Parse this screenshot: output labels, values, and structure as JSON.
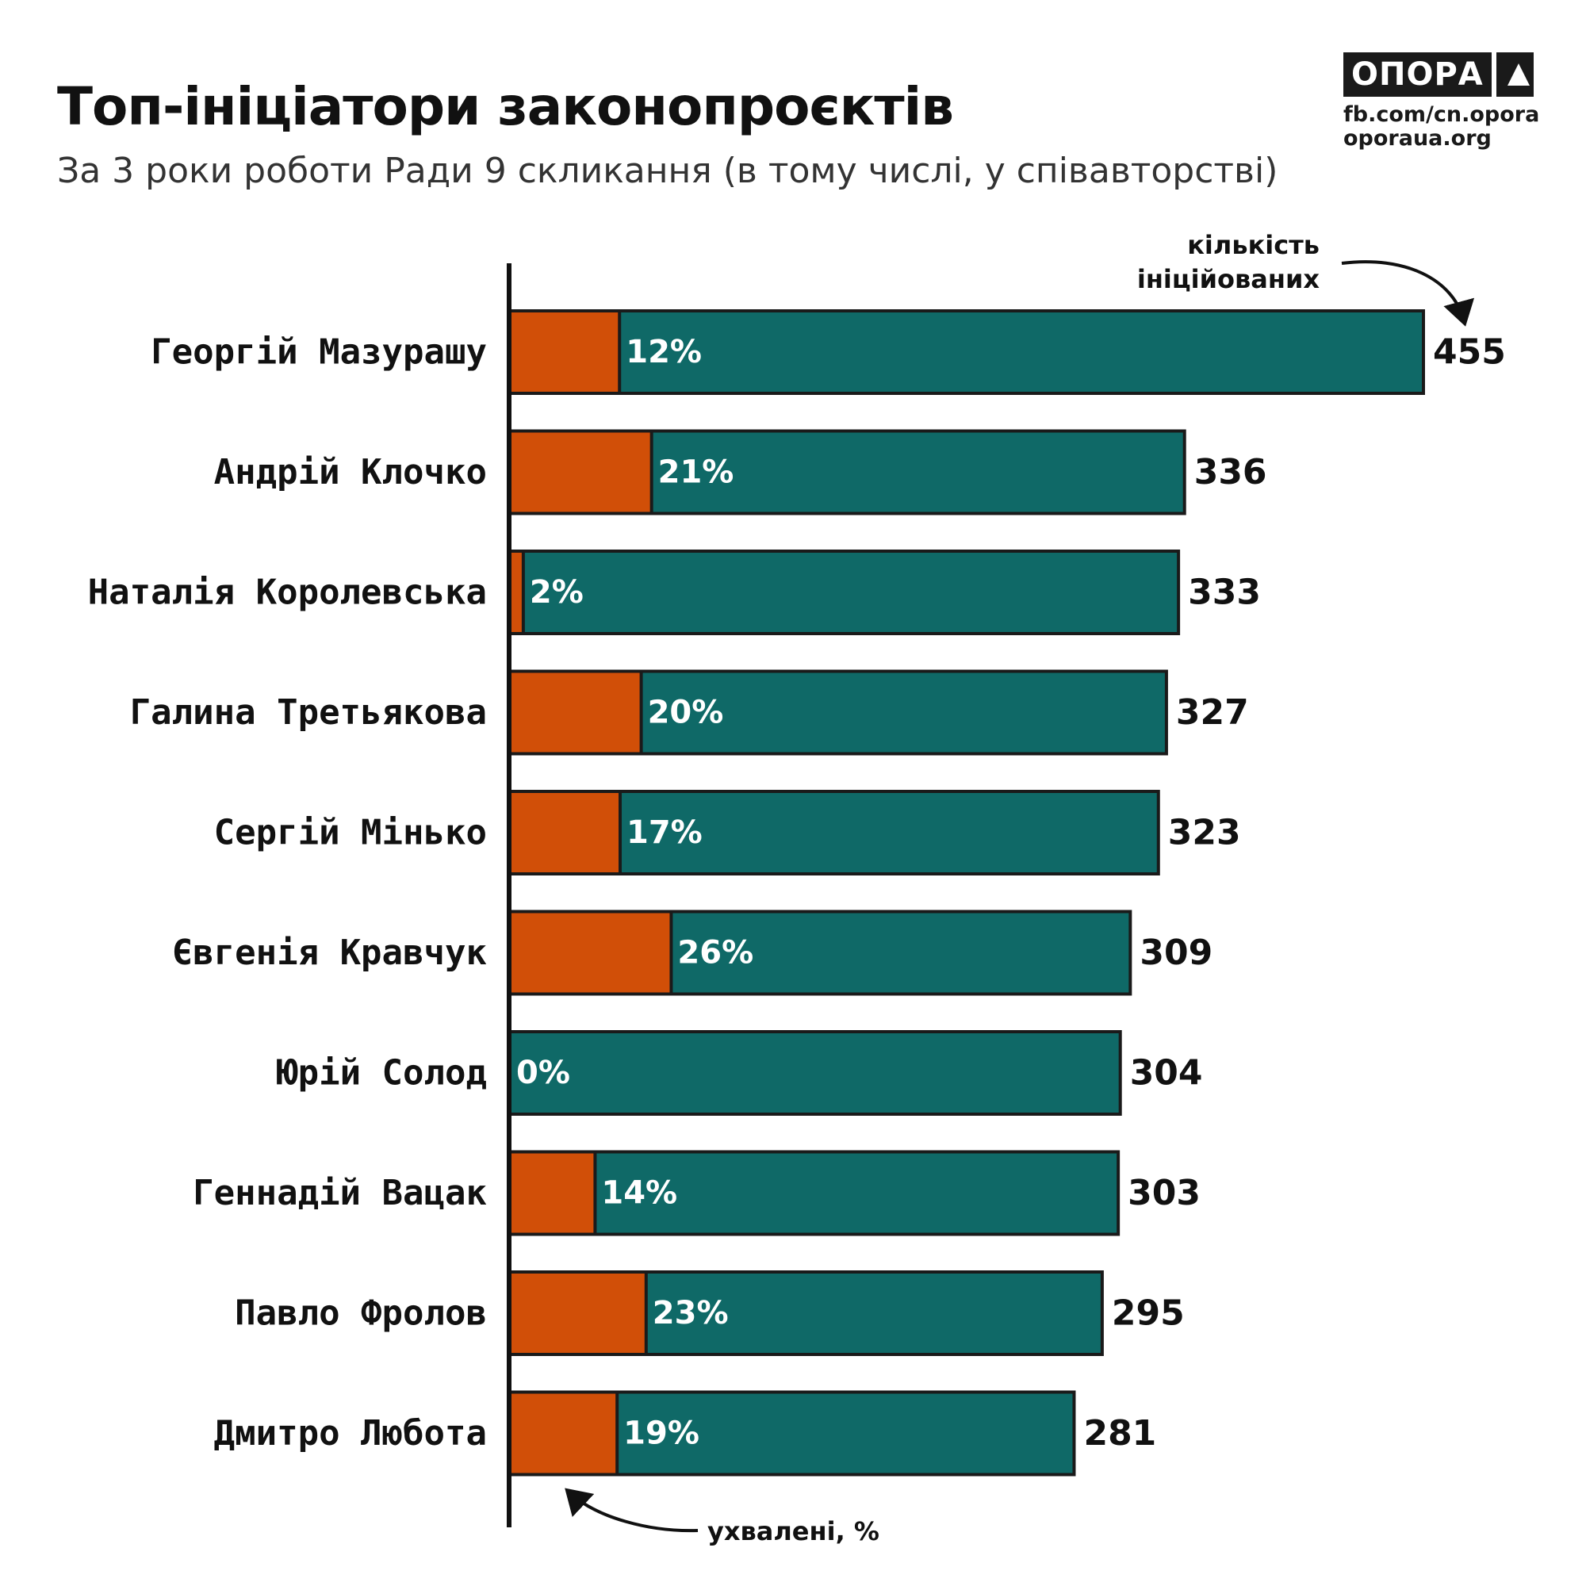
{
  "header": {
    "title": "Топ-ініціатори законопроєктів",
    "subtitle": "За 3 роки роботи Ради 9 скликання (в тому числі, у співавторстві)"
  },
  "brand": {
    "logo_text": "ОПОРА",
    "logo_icon": "triangle-icon",
    "facebook": "fb.com/cn.opora",
    "website": "oporaua.org"
  },
  "colors": {
    "total": "#0f6967",
    "approved": "#d14f08",
    "outline": "#1a1a1a"
  },
  "chart_data": {
    "type": "bar",
    "orientation": "horizontal",
    "title": "Топ-ініціатори законопроєктів",
    "subtitle": "За 3 роки роботи Ради 9 скликання (в тому числі, у співавторстві)",
    "categories": [
      "Георгій Мазурашу",
      "Андрій Клочко",
      "Наталія Королевська",
      "Галина Третьякова",
      "Сергій Мінько",
      "Євгенія Кравчук",
      "Юрій Солод",
      "Геннадій Вацак",
      "Павло Фролов",
      "Дмитро Любота"
    ],
    "series": [
      {
        "name": "кількість ініційованих",
        "values": [
          455,
          336,
          333,
          327,
          323,
          309,
          304,
          303,
          295,
          281
        ]
      },
      {
        "name": "ухвалені, %",
        "values": [
          12,
          21,
          2,
          20,
          17,
          26,
          0,
          14,
          23,
          19
        ]
      }
    ],
    "approved_labels": [
      "12%",
      "21%",
      "2%",
      "20%",
      "17%",
      "26%",
      "0%",
      "14%",
      "23%",
      "19%"
    ],
    "xlim": [
      0,
      455
    ],
    "grid": false,
    "annotations": {
      "total_line1": "кількість",
      "total_line2": "ініційованих",
      "approved": "ухвалені, %"
    }
  }
}
